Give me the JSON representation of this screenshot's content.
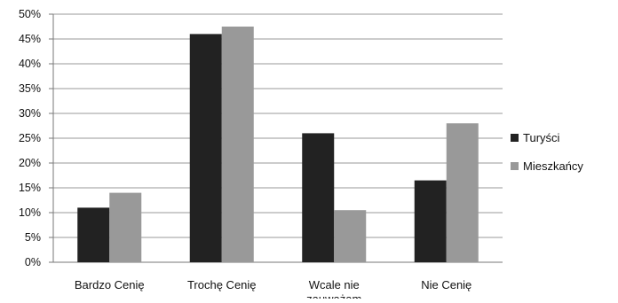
{
  "chart_data": {
    "type": "bar",
    "categories": [
      "Bardzo Cenię",
      "Trochę Cenię",
      "Wcale nie\nzauważam",
      "Nie Cenię"
    ],
    "series": [
      {
        "name": "Turyści",
        "color": "#222222",
        "values": [
          11,
          46,
          26,
          16.5
        ]
      },
      {
        "name": "Mieszkańcy",
        "color": "#999999",
        "values": [
          14,
          47.5,
          10.5,
          28
        ]
      }
    ],
    "ylim": [
      0,
      50
    ],
    "yticks": [
      "0%",
      "5%",
      "10%",
      "15%",
      "20%",
      "25%",
      "30%",
      "35%",
      "40%",
      "45%",
      "50%"
    ],
    "grid": true,
    "legend_position": "right",
    "title": "",
    "xlabel": "",
    "ylabel": ""
  }
}
